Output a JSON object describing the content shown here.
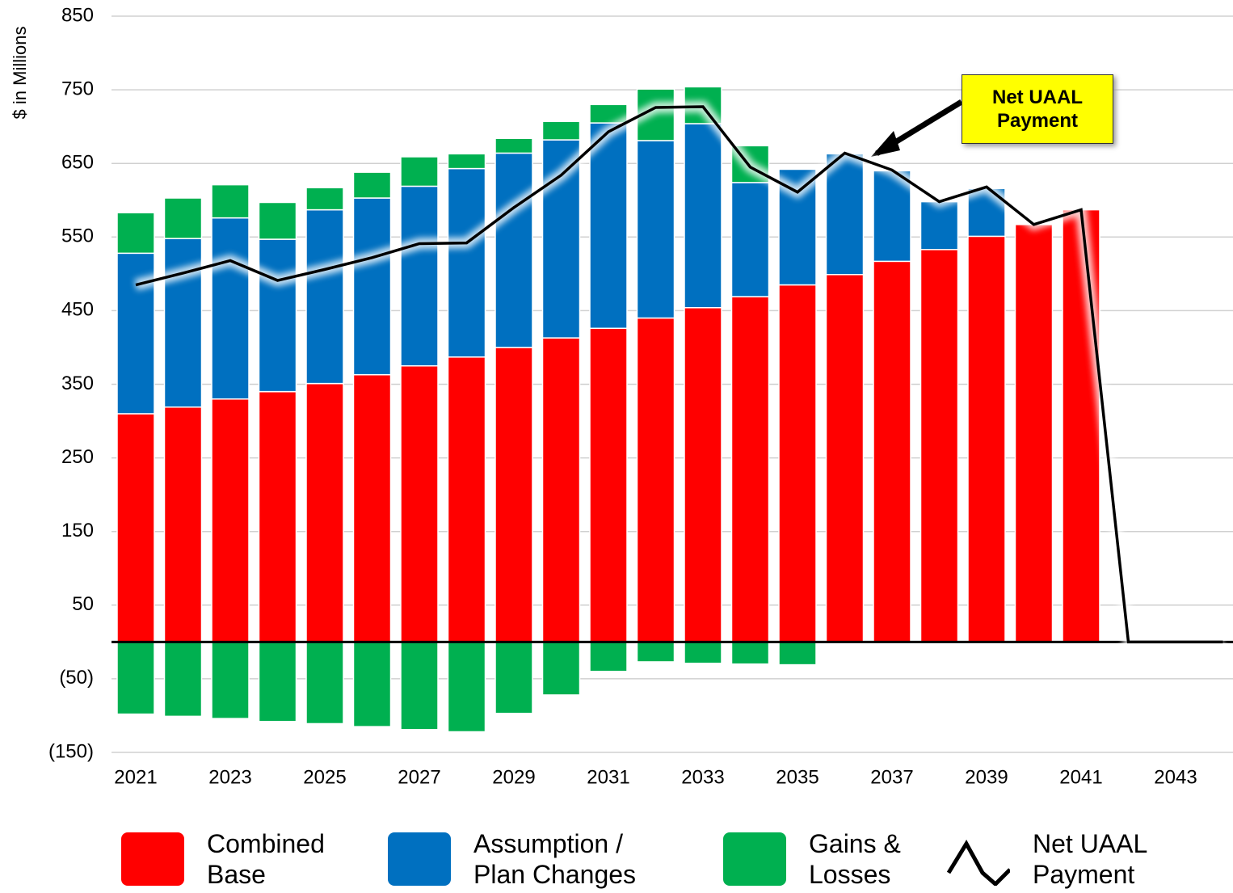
{
  "chart_data": {
    "type": "bar",
    "y_axis_label": "$ in Millions",
    "categories": [
      "2021",
      null,
      "2023",
      null,
      "2025",
      null,
      "2027",
      null,
      "2029",
      null,
      "2031",
      null,
      "2033",
      null,
      "2035",
      null,
      "2037",
      null,
      "2039",
      null,
      "2041",
      null,
      "2043",
      null
    ],
    "series": [
      {
        "name": "Combined Base",
        "color": "#ff0000",
        "type": "bar",
        "values": [
          310,
          319,
          330,
          340,
          351,
          363,
          375,
          387,
          400,
          413,
          426,
          440,
          454,
          469,
          485,
          499,
          517,
          533,
          551,
          567,
          587,
          0,
          0,
          0
        ]
      },
      {
        "name": "Assumption / Plan Changes",
        "color": "#0070c0",
        "type": "bar",
        "values": [
          218,
          229,
          246,
          207,
          236,
          240,
          244,
          256,
          264,
          269,
          279,
          241,
          250,
          155,
          157,
          164,
          123,
          65,
          65,
          0,
          0,
          0,
          0,
          0
        ]
      },
      {
        "name": "Gains & Losses",
        "color": "#00b050",
        "type": "bar",
        "values": [
          55,
          55,
          45,
          50,
          30,
          35,
          40,
          20,
          20,
          25,
          25,
          70,
          50,
          50,
          0,
          0,
          0,
          0,
          0,
          0,
          0,
          0,
          0,
          0
        ],
        "negative_values": [
          -98,
          -101,
          -104,
          -108,
          -111,
          -115,
          -119,
          -122,
          -97,
          -72,
          -40,
          -27,
          -29,
          -30,
          -31,
          0,
          0,
          0,
          0,
          0,
          0,
          0,
          0,
          0
        ]
      },
      {
        "name": "Net UAAL Payment",
        "color": "#000000",
        "type": "line",
        "values": [
          485,
          501,
          518,
          491,
          506,
          522,
          541,
          542,
          590,
          634,
          693,
          726,
          727,
          645,
          611,
          664,
          641,
          598,
          618,
          567,
          587,
          0,
          0,
          0
        ]
      }
    ],
    "annotation": "Net UAAL Payment",
    "ylim": [
      -150,
      850
    ],
    "yticks": [
      {
        "value": -150,
        "label": "(150)"
      },
      {
        "value": -50,
        "label": "(50)"
      },
      50,
      150,
      250,
      350,
      450,
      550,
      650,
      750,
      850
    ],
    "grid": true
  }
}
